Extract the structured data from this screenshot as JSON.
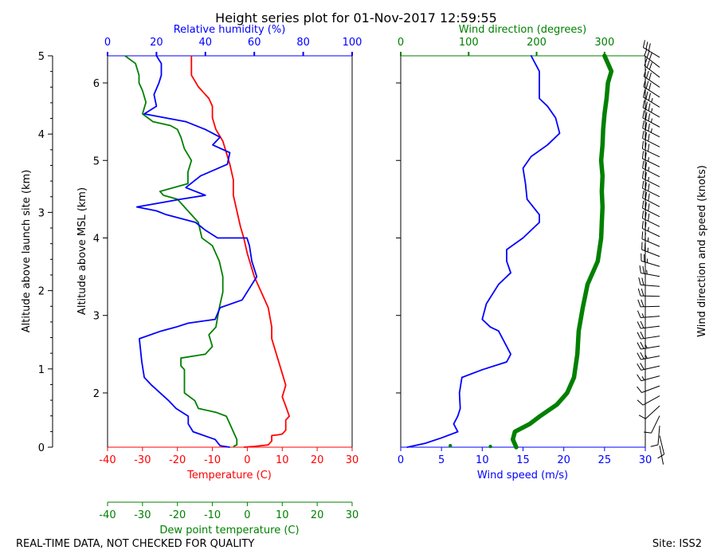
{
  "title": "Height series plot for 01-Nov-2017 12:59:55",
  "footer": {
    "left": "REAL-TIME DATA, NOT CHECKED FOR QUALITY",
    "right": "Site: ISS2"
  },
  "colors": {
    "temperature": "#ff0000",
    "dewpoint": "#008000",
    "humidity": "#0000ff",
    "wind_speed": "#0000ff",
    "wind_direction": "#008000",
    "barbs": "#000000"
  },
  "chart_data": [
    {
      "type": "line",
      "title": "Thermodynamic profile",
      "ylabel": "Altitude above MSL (km)",
      "ylim": [
        1.3,
        6.35
      ],
      "yticks": [
        2,
        3,
        4,
        5,
        6
      ],
      "site_axis": {
        "label": "Altitude above launch site (km)",
        "ticks": [
          0,
          1,
          2,
          3,
          4,
          5
        ]
      },
      "axes": {
        "temperature": {
          "label": "Temperature (C)",
          "lim": [
            -40,
            30
          ],
          "ticks": [
            -40,
            -30,
            -20,
            -10,
            0,
            10,
            20,
            30
          ]
        },
        "dewpoint": {
          "label": "Dew point temperature (C)",
          "lim": [
            -40,
            30
          ],
          "ticks": [
            -40,
            -30,
            -20,
            -10,
            0,
            10,
            20,
            30
          ]
        },
        "humidity": {
          "label": "Relative humidity (%)",
          "lim": [
            0,
            100
          ],
          "ticks": [
            0,
            20,
            40,
            60,
            80,
            100
          ]
        }
      },
      "series": [
        {
          "name": "Temperature (C)",
          "axis": "temperature",
          "points": [
            [
              -1,
              1.3
            ],
            [
              2,
              1.31
            ],
            [
              6,
              1.33
            ],
            [
              7,
              1.38
            ],
            [
              7,
              1.45
            ],
            [
              9,
              1.46
            ],
            [
              10,
              1.47
            ],
            [
              11,
              1.52
            ],
            [
              11,
              1.65
            ],
            [
              12,
              1.7
            ],
            [
              11,
              1.83
            ],
            [
              10,
              1.95
            ],
            [
              11,
              2.1
            ],
            [
              10,
              2.25
            ],
            [
              9,
              2.4
            ],
            [
              8,
              2.55
            ],
            [
              7,
              2.7
            ],
            [
              7,
              2.85
            ],
            [
              6,
              3.1
            ],
            [
              4,
              3.3
            ],
            [
              2,
              3.5
            ],
            [
              1,
              3.65
            ],
            [
              0,
              3.8
            ],
            [
              -1,
              4.0
            ],
            [
              -2,
              4.15
            ],
            [
              -3,
              4.35
            ],
            [
              -4,
              4.55
            ],
            [
              -4,
              4.75
            ],
            [
              -5,
              4.95
            ],
            [
              -6,
              5.1
            ],
            [
              -7,
              5.25
            ],
            [
              -9,
              5.4
            ],
            [
              -10,
              5.55
            ],
            [
              -10,
              5.7
            ],
            [
              -11,
              5.8
            ],
            [
              -14,
              5.95
            ],
            [
              -16,
              6.1
            ],
            [
              -16,
              6.25
            ],
            [
              -16,
              6.35
            ]
          ]
        },
        {
          "name": "Dew point temperature (C)",
          "axis": "dewpoint",
          "points": [
            [
              -4,
              1.31
            ],
            [
              -3,
              1.33
            ],
            [
              -3,
              1.4
            ],
            [
              -4,
              1.5
            ],
            [
              -5,
              1.6
            ],
            [
              -6,
              1.7
            ],
            [
              -9,
              1.75
            ],
            [
              -14,
              1.8
            ],
            [
              -15,
              1.9
            ],
            [
              -18,
              2.0
            ],
            [
              -18,
              2.15
            ],
            [
              -18,
              2.3
            ],
            [
              -19,
              2.35
            ],
            [
              -19,
              2.45
            ],
            [
              -12,
              2.5
            ],
            [
              -10,
              2.6
            ],
            [
              -11,
              2.75
            ],
            [
              -9,
              2.85
            ],
            [
              -8,
              3.1
            ],
            [
              -7,
              3.3
            ],
            [
              -7,
              3.5
            ],
            [
              -8,
              3.7
            ],
            [
              -10,
              3.9
            ],
            [
              -13,
              4.0
            ],
            [
              -14,
              4.2
            ],
            [
              -17,
              4.35
            ],
            [
              -20,
              4.5
            ],
            [
              -24,
              4.55
            ],
            [
              -25,
              4.6
            ],
            [
              -17,
              4.7
            ],
            [
              -17,
              4.85
            ],
            [
              -16,
              5.0
            ],
            [
              -18,
              5.15
            ],
            [
              -19,
              5.3
            ],
            [
              -20,
              5.4
            ],
            [
              -22,
              5.45
            ],
            [
              -27,
              5.5
            ],
            [
              -30,
              5.6
            ],
            [
              -29,
              5.75
            ],
            [
              -30,
              5.9
            ],
            [
              -31,
              6.0
            ],
            [
              -31,
              6.1
            ],
            [
              -32,
              6.25
            ],
            [
              -35,
              6.35
            ]
          ]
        },
        {
          "name": "Relative humidity (%)",
          "axis": "humidity",
          "points": [
            [
              50,
              1.3
            ],
            [
              46,
              1.32
            ],
            [
              44,
              1.4
            ],
            [
              35,
              1.5
            ],
            [
              33,
              1.6
            ],
            [
              33,
              1.7
            ],
            [
              28,
              1.8
            ],
            [
              25,
              1.9
            ],
            [
              18,
              2.1
            ],
            [
              15,
              2.2
            ],
            [
              14,
              2.4
            ],
            [
              13,
              2.7
            ],
            [
              22,
              2.8
            ],
            [
              28,
              2.85
            ],
            [
              33,
              2.9
            ],
            [
              44,
              2.95
            ],
            [
              46,
              3.1
            ],
            [
              55,
              3.2
            ],
            [
              61,
              3.5
            ],
            [
              59,
              3.7
            ],
            [
              58,
              3.9
            ],
            [
              57,
              4.0
            ],
            [
              45,
              4.0
            ],
            [
              40,
              4.1
            ],
            [
              36,
              4.2
            ],
            [
              24,
              4.3
            ],
            [
              20,
              4.35
            ],
            [
              12,
              4.4
            ],
            [
              30,
              4.5
            ],
            [
              40,
              4.55
            ],
            [
              32,
              4.65
            ],
            [
              38,
              4.8
            ],
            [
              49,
              4.95
            ],
            [
              50,
              5.1
            ],
            [
              43,
              5.2
            ],
            [
              46,
              5.3
            ],
            [
              40,
              5.4
            ],
            [
              32,
              5.5
            ],
            [
              15,
              5.6
            ],
            [
              20,
              5.7
            ],
            [
              19,
              5.85
            ],
            [
              21,
              6.0
            ],
            [
              22,
              6.1
            ],
            [
              22,
              6.25
            ],
            [
              20,
              6.35
            ]
          ]
        }
      ]
    },
    {
      "type": "line",
      "title": "Wind profile",
      "ylim": [
        1.3,
        6.35
      ],
      "yticks": [
        2,
        3,
        4,
        5,
        6
      ],
      "barb_axis_label": "Wind direction and speed (knots)",
      "axes": {
        "wind_speed": {
          "label": "Wind speed (m/s)",
          "lim": [
            0,
            30
          ],
          "ticks": [
            0,
            5,
            10,
            15,
            20,
            25,
            30
          ]
        },
        "wind_direction": {
          "label": "Wind direction (degrees)",
          "lim": [
            0,
            360
          ],
          "ticks": [
            0,
            100,
            200,
            300
          ]
        }
      },
      "series": [
        {
          "name": "Wind speed (m/s)",
          "axis": "wind_speed",
          "points": [
            [
              0.8,
              1.3
            ],
            [
              3,
              1.35
            ],
            [
              5,
              1.42
            ],
            [
              7,
              1.5
            ],
            [
              6.5,
              1.6
            ],
            [
              7,
              1.7
            ],
            [
              7.3,
              1.8
            ],
            [
              7.2,
              2.0
            ],
            [
              7.5,
              2.2
            ],
            [
              10,
              2.3
            ],
            [
              13,
              2.4
            ],
            [
              13.5,
              2.5
            ],
            [
              13,
              2.6
            ],
            [
              12,
              2.8
            ],
            [
              11,
              2.85
            ],
            [
              10,
              2.95
            ],
            [
              10.5,
              3.15
            ],
            [
              12,
              3.4
            ],
            [
              13.5,
              3.55
            ],
            [
              13,
              3.7
            ],
            [
              13,
              3.85
            ],
            [
              15,
              4.0
            ],
            [
              17,
              4.2
            ],
            [
              17,
              4.3
            ],
            [
              15.5,
              4.5
            ],
            [
              15.3,
              4.7
            ],
            [
              15,
              4.9
            ],
            [
              16,
              5.05
            ],
            [
              18,
              5.2
            ],
            [
              19.5,
              5.35
            ],
            [
              19,
              5.55
            ],
            [
              18,
              5.7
            ],
            [
              17,
              5.8
            ],
            [
              17,
              6.0
            ],
            [
              17,
              6.15
            ],
            [
              16,
              6.35
            ]
          ]
        },
        {
          "name": "Wind direction (degrees)",
          "axis": "wind_direction",
          "points": [
            [
              170,
              1.3
            ],
            [
              165,
              1.4
            ],
            [
              168,
              1.5
            ],
            [
              190,
              1.6
            ],
            [
              205,
              1.7
            ],
            [
              230,
              1.85
            ],
            [
              245,
              2.0
            ],
            [
              255,
              2.2
            ],
            [
              260,
              2.5
            ],
            [
              262,
              2.8
            ],
            [
              268,
              3.1
            ],
            [
              275,
              3.4
            ],
            [
              290,
              3.7
            ],
            [
              295,
              4.0
            ],
            [
              296,
              4.2
            ],
            [
              297,
              4.4
            ],
            [
              296,
              4.6
            ],
            [
              297,
              4.8
            ],
            [
              295,
              5.0
            ],
            [
              297,
              5.2
            ],
            [
              298,
              5.4
            ],
            [
              300,
              5.6
            ],
            [
              303,
              5.8
            ],
            [
              305,
              6.0
            ],
            [
              310,
              6.15
            ],
            [
              300,
              6.35
            ]
          ]
        },
        {
          "name": "Wind direction (degrees)",
          "axis": "wind_direction",
          "marker_only": true,
          "points": [
            [
              73,
              1.32
            ],
            [
              132,
              1.31
            ]
          ]
        }
      ]
    }
  ]
}
